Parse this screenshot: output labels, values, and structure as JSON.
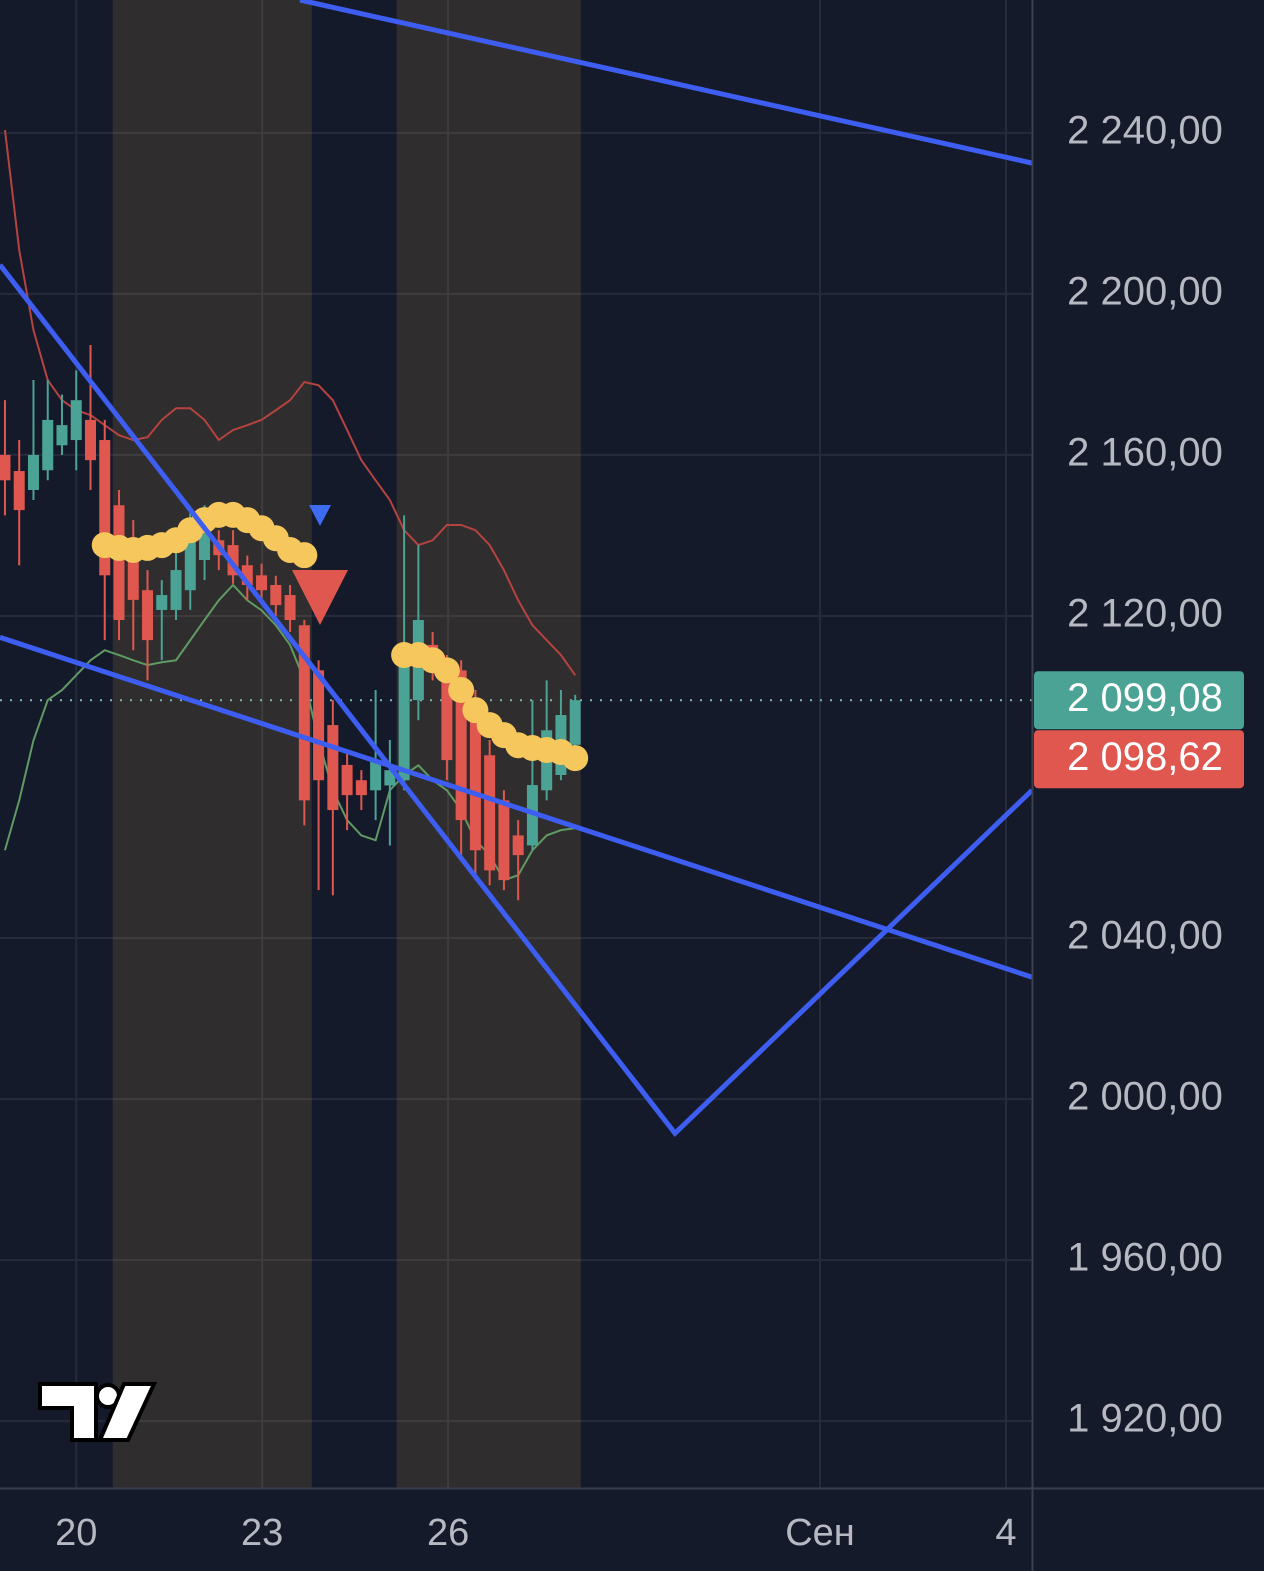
{
  "chart_data": {
    "type": "candlestick",
    "xlim": [
      18.77,
      35.42
    ],
    "ylim": [
      1903.4,
      2273
    ],
    "xticks": [
      20,
      23,
      26,
      {
        "value": 32,
        "label": "Сен"
      },
      {
        "value": 35,
        "label": "4"
      }
    ],
    "yticks": [
      {
        "value": 1920,
        "label": "1 920,00"
      },
      {
        "value": 1960,
        "label": "1 960,00"
      },
      {
        "value": 2000,
        "label": "2 000,00"
      },
      {
        "value": 2040,
        "label": "2 040,00"
      },
      {
        "value": 2120,
        "label": "2 120,00"
      },
      {
        "value": 2160,
        "label": "2 160,00"
      },
      {
        "value": 2200,
        "label": "2 200,00"
      },
      {
        "value": 2240,
        "label": "2 240,00"
      }
    ],
    "grid": true,
    "up_color": "#4aa394",
    "down_color": "#e0574f",
    "x": [
      18.85,
      19.08,
      19.31,
      19.54,
      19.77,
      20.0,
      20.23,
      20.46,
      20.69,
      20.92,
      21.15,
      21.38,
      21.61,
      21.84,
      22.07,
      22.3,
      22.53,
      22.76,
      22.99,
      23.22,
      23.45,
      23.68,
      23.91,
      24.14,
      24.37,
      24.6,
      24.83,
      25.06,
      25.29,
      25.52,
      25.75,
      25.98,
      26.21,
      26.44,
      26.67,
      26.9,
      27.13,
      27.36,
      27.59,
      27.82,
      28.05
    ],
    "open": [
      2160,
      2156,
      2151.3,
      2156.2,
      2162.4,
      2163.7,
      2168.7,
      2163.7,
      2147.5,
      2138.8,
      2126.4,
      2121.5,
      2121.5,
      2126.4,
      2133.9,
      2138.8,
      2137.6,
      2132.6,
      2130.1,
      2127.7,
      2125.2,
      2117.7,
      2106.5,
      2092.9,
      2083,
      2079.2,
      2076.7,
      2077.9,
      2079.2,
      2099.1,
      2112.8,
      2109,
      2106.5,
      2099.1,
      2085.4,
      2074.2,
      2065.5,
      2063,
      2076.7,
      2080.5,
      2088
    ],
    "high": [
      2173.6,
      2163.7,
      2178.6,
      2178.6,
      2175,
      2181,
      2187.3,
      2168.7,
      2151.3,
      2143.8,
      2131.4,
      2128.9,
      2138.8,
      2146.3,
      2147.5,
      2141.3,
      2141.3,
      2135,
      2133,
      2130,
      2127.7,
      2119,
      2109,
      2099.1,
      2086.7,
      2081.7,
      2101.6,
      2089.2,
      2145,
      2137.6,
      2116,
      2110.3,
      2109,
      2101.6,
      2089.2,
      2076.7,
      2069.3,
      2099.1,
      2104,
      2101.6,
      2100.4
    ],
    "low": [
      2145,
      2132.6,
      2148.8,
      2153.7,
      2160,
      2156.2,
      2151.3,
      2114,
      2114,
      2111.5,
      2104,
      2109,
      2119,
      2121.5,
      2128.9,
      2131.4,
      2128,
      2124,
      2123,
      2120,
      2116,
      2068,
      2051.9,
      2050.6,
      2066.8,
      2071.8,
      2069.3,
      2063,
      2076.7,
      2094.1,
      2104,
      2079.2,
      2060,
      2054.4,
      2053.1,
      2051.9,
      2049.4,
      2061.8,
      2074.2,
      2079.2,
      2086.7
    ],
    "close": [
      2153.7,
      2146.3,
      2160,
      2168.7,
      2167.4,
      2173.6,
      2158.7,
      2130.1,
      2119,
      2124,
      2114,
      2125.2,
      2131.4,
      2141.3,
      2146.3,
      2135.1,
      2130.1,
      2127.7,
      2126.4,
      2122.7,
      2119,
      2074.2,
      2079.2,
      2071.8,
      2075.5,
      2075.5,
      2084.2,
      2081.7,
      2111.5,
      2119,
      2109,
      2084.2,
      2069.3,
      2061.8,
      2056.8,
      2054.4,
      2060.6,
      2078,
      2091.6,
      2095.4,
      2099.08
    ],
    "lines": [
      {
        "color": "#b5433f",
        "values": [
          2240.7,
          2210.9,
          2191.0,
          2178.6,
          2173.6,
          2171.1,
          2169.9,
          2167.4,
          2164.9,
          2163.7,
          2164.4,
          2168.7,
          2171.6,
          2171.6,
          2168.7,
          2163.7,
          2166.2,
          2167.4,
          2168.7,
          2171.1,
          2173.6,
          2178.1,
          2177.3,
          2173.6,
          2166.2,
          2158.7,
          2153.7,
          2148.8,
          2141.3,
          2137.6,
          2138.8,
          2142.6,
          2142.6,
          2141.3,
          2137.6,
          2131.4,
          2123.9,
          2117.7,
          2114.0,
          2110.3,
          2105.3
        ]
      },
      {
        "color": "#5f9a63",
        "values": [
          2061.8,
          2074.2,
          2089.1,
          2099.1,
          2101.6,
          2105.3,
          2109.0,
          2111.5,
          2110.3,
          2109.0,
          2107.8,
          2108.5,
          2109.0,
          2114.0,
          2119.0,
          2123.9,
          2127.7,
          2123.9,
          2121.4,
          2117.7,
          2112.8,
          2104.1,
          2089.1,
          2076.7,
          2069.3,
          2065.5,
          2064.3,
          2076.7,
          2080.5,
          2082.9,
          2079.2,
          2076.7,
          2071.8,
          2064.3,
          2060.6,
          2054.4,
          2055.6,
          2061.8,
          2065.5,
          2066.8,
          2067.3
        ]
      }
    ],
    "dots": {
      "color": "#f5c75d",
      "values": [
        null,
        null,
        null,
        null,
        null,
        null,
        null,
        2137.6,
        2136.9,
        2136.4,
        2136.9,
        2137.6,
        2138.8,
        2141.3,
        2143.8,
        2145.1,
        2145.1,
        2143.8,
        2141.8,
        2139.3,
        2136.4,
        2135.1,
        null,
        null,
        null,
        null,
        null,
        null,
        2110.3,
        2110.3,
        2109.0,
        2106.5,
        2101.6,
        2096.6,
        2092.9,
        2090.4,
        2087.9,
        2087.2,
        2086.7,
        2086.2,
        2084.7
      ]
    },
    "sessions": [
      [
        20.59,
        23.8
      ],
      [
        25.17,
        28.14
      ]
    ],
    "drawings": [
      {
        "color": "#3d5ef0",
        "x": [
          23.61,
          35.42
        ],
        "y": [
          2273,
          2232.5
        ]
      },
      {
        "color": "#3d5ef0",
        "x": [
          18.77,
          29.66,
          35.42
        ],
        "y": [
          2207.2,
          1991.5,
          2076.7
        ]
      },
      {
        "color": "#3d5ef0",
        "x": [
          18.77,
          35.42
        ],
        "y": [
          2114.7,
          2030.3
        ]
      }
    ],
    "price_labels": [
      {
        "value": 2099.08,
        "label": "2 099,08",
        "color": "#4aa394"
      },
      {
        "value": 2098.62,
        "label": "2 098,62",
        "color": "#e0574f"
      }
    ]
  }
}
